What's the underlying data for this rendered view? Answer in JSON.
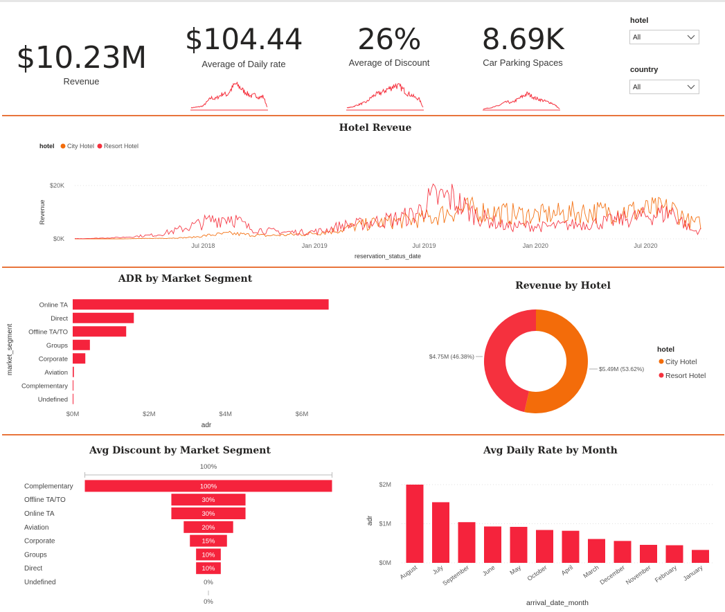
{
  "kpis": {
    "revenue": {
      "value": "$10.23M",
      "label": "Revenue"
    },
    "daily_rate": {
      "value": "$104.44",
      "label": "Average of Daily rate"
    },
    "discount": {
      "value": "26%",
      "label": "Average of Discount"
    },
    "parking": {
      "value": "8.69K",
      "label": "Car Parking Spaces"
    }
  },
  "slicers": {
    "hotel": {
      "label": "hotel",
      "value": "All"
    },
    "country": {
      "label": "country",
      "value": "All"
    }
  },
  "colors": {
    "city": "#f36c0a",
    "resort": "#f5313e",
    "bar": "#f5233c",
    "divider": "#e8743b"
  },
  "chart_data": [
    {
      "id": "hotel_revenue",
      "type": "line",
      "title": "Hotel Reveue",
      "legend_title": "hotel",
      "legend_position": "top-left",
      "xlabel": "reservation_status_date",
      "ylabel": "Revenue",
      "x_ticks": [
        "Jul 2018",
        "Jan 2019",
        "Jul 2019",
        "Jan 2020",
        "Jul 2020"
      ],
      "y_ticks": [
        "$0K",
        "$20K"
      ],
      "ylim": [
        0,
        20000
      ],
      "x_range": [
        "2017-12-01",
        "2020-09-30"
      ],
      "grid": true,
      "series": [
        {
          "name": "City Hotel",
          "color": "#f36c0a",
          "x": [
            "2017-12",
            "2018-01",
            "2018-02",
            "2018-03",
            "2018-04",
            "2018-05",
            "2018-06",
            "2018-07",
            "2018-08",
            "2018-09",
            "2018-10",
            "2018-11",
            "2018-12",
            "2019-01",
            "2019-02",
            "2019-03",
            "2019-04",
            "2019-05",
            "2019-06",
            "2019-07",
            "2019-08",
            "2019-09",
            "2019-10",
            "2019-11",
            "2019-12",
            "2020-01",
            "2020-02",
            "2020-03",
            "2020-04",
            "2020-05",
            "2020-06",
            "2020-07",
            "2020-08",
            "2020-09"
          ],
          "values": [
            0,
            0,
            0,
            100,
            200,
            300,
            600,
            1500,
            2000,
            1500,
            1200,
            1500,
            1800,
            2500,
            3500,
            5000,
            6000,
            6500,
            7000,
            8000,
            10500,
            11000,
            10000,
            9500,
            9000,
            9000,
            9500,
            10000,
            10000,
            10500,
            10500,
            11000,
            11000,
            6000
          ]
        },
        {
          "name": "Resort Hotel",
          "color": "#f5313e",
          "x": [
            "2017-12",
            "2018-01",
            "2018-02",
            "2018-03",
            "2018-04",
            "2018-05",
            "2018-06",
            "2018-07",
            "2018-08",
            "2018-09",
            "2018-10",
            "2018-11",
            "2018-12",
            "2019-01",
            "2019-02",
            "2019-03",
            "2019-04",
            "2019-05",
            "2019-06",
            "2019-07",
            "2019-08",
            "2019-09",
            "2019-10",
            "2019-11",
            "2019-12",
            "2020-01",
            "2020-02",
            "2020-03",
            "2020-04",
            "2020-05",
            "2020-06",
            "2020-07",
            "2020-08",
            "2020-09"
          ],
          "values": [
            100,
            300,
            500,
            1000,
            1500,
            3000,
            5000,
            7000,
            8500,
            4000,
            3000,
            2500,
            2500,
            3000,
            5000,
            5500,
            6500,
            7500,
            9000,
            15000,
            15500,
            10000,
            7000,
            4500,
            5000,
            4500,
            5000,
            5500,
            6000,
            7000,
            8000,
            9000,
            10000,
            3000
          ]
        }
      ]
    },
    {
      "id": "adr_by_segment",
      "type": "bar",
      "orientation": "horizontal",
      "title": "ADR by Market Segment",
      "xlabel": "adr",
      "ylabel": "market_segment",
      "categories": [
        "Online TA",
        "Direct",
        "Offline TA/TO",
        "Groups",
        "Corporate",
        "Aviation",
        "Complementary",
        "Undefined"
      ],
      "values": [
        6700000,
        1600000,
        1400000,
        450000,
        330000,
        30000,
        15000,
        5000
      ],
      "x_ticks": [
        "$0M",
        "$2M",
        "$4M",
        "$6M"
      ],
      "xlim": [
        0,
        7000000
      ]
    },
    {
      "id": "revenue_by_hotel",
      "type": "pie",
      "title": "Revenue by Hotel",
      "legend_title": "hotel",
      "legend_position": "right",
      "categories": [
        "City Hotel",
        "Resort Hotel"
      ],
      "values": [
        5.49,
        4.75
      ],
      "labels": [
        "$5.49M (53.62%)",
        "$4.75M (46.38%)"
      ],
      "colors": [
        "#f36c0a",
        "#f5313e"
      ]
    },
    {
      "id": "discount_by_segment",
      "type": "bar",
      "orientation": "funnel",
      "title": "Avg Discount by Market Segment",
      "top_label": "100%",
      "bottom_label": "0%",
      "categories": [
        "Complementary",
        "Offline TA/TO",
        "Online TA",
        "Aviation",
        "Corporate",
        "Groups",
        "Direct",
        "Undefined"
      ],
      "values": [
        100,
        30,
        30,
        20,
        15,
        10,
        10,
        0
      ],
      "labels": [
        "100%",
        "30%",
        "30%",
        "20%",
        "15%",
        "10%",
        "10%",
        "0%"
      ]
    },
    {
      "id": "adr_by_month",
      "type": "bar",
      "title": "Avg Daily Rate by Month",
      "xlabel": "arrival_date_month",
      "ylabel": "adr",
      "categories": [
        "August",
        "July",
        "September",
        "June",
        "May",
        "October",
        "April",
        "March",
        "December",
        "November",
        "February",
        "January"
      ],
      "values": [
        2000000,
        1550000,
        1040000,
        930000,
        920000,
        840000,
        820000,
        610000,
        560000,
        460000,
        450000,
        330000
      ],
      "y_ticks": [
        "$0M",
        "$1M",
        "$2M"
      ],
      "ylim": [
        0,
        2000000
      ]
    }
  ],
  "sparklines": {
    "daily_rate": [
      0.08,
      0.1,
      0.12,
      0.15,
      0.3,
      0.45,
      0.4,
      0.5,
      0.6,
      0.55,
      0.75,
      0.95,
      0.85,
      0.7,
      0.6,
      0.5,
      0.55,
      0.45,
      0.5,
      0.1
    ],
    "discount": [
      0.08,
      0.1,
      0.15,
      0.2,
      0.25,
      0.3,
      0.45,
      0.55,
      0.6,
      0.65,
      0.75,
      0.8,
      0.9,
      0.85,
      0.75,
      0.6,
      0.55,
      0.45,
      0.4,
      0.1
    ],
    "parking": [
      0.05,
      0.08,
      0.1,
      0.15,
      0.2,
      0.3,
      0.35,
      0.3,
      0.4,
      0.5,
      0.6,
      0.7,
      0.6,
      0.5,
      0.45,
      0.4,
      0.35,
      0.3,
      0.2,
      0.05
    ]
  }
}
